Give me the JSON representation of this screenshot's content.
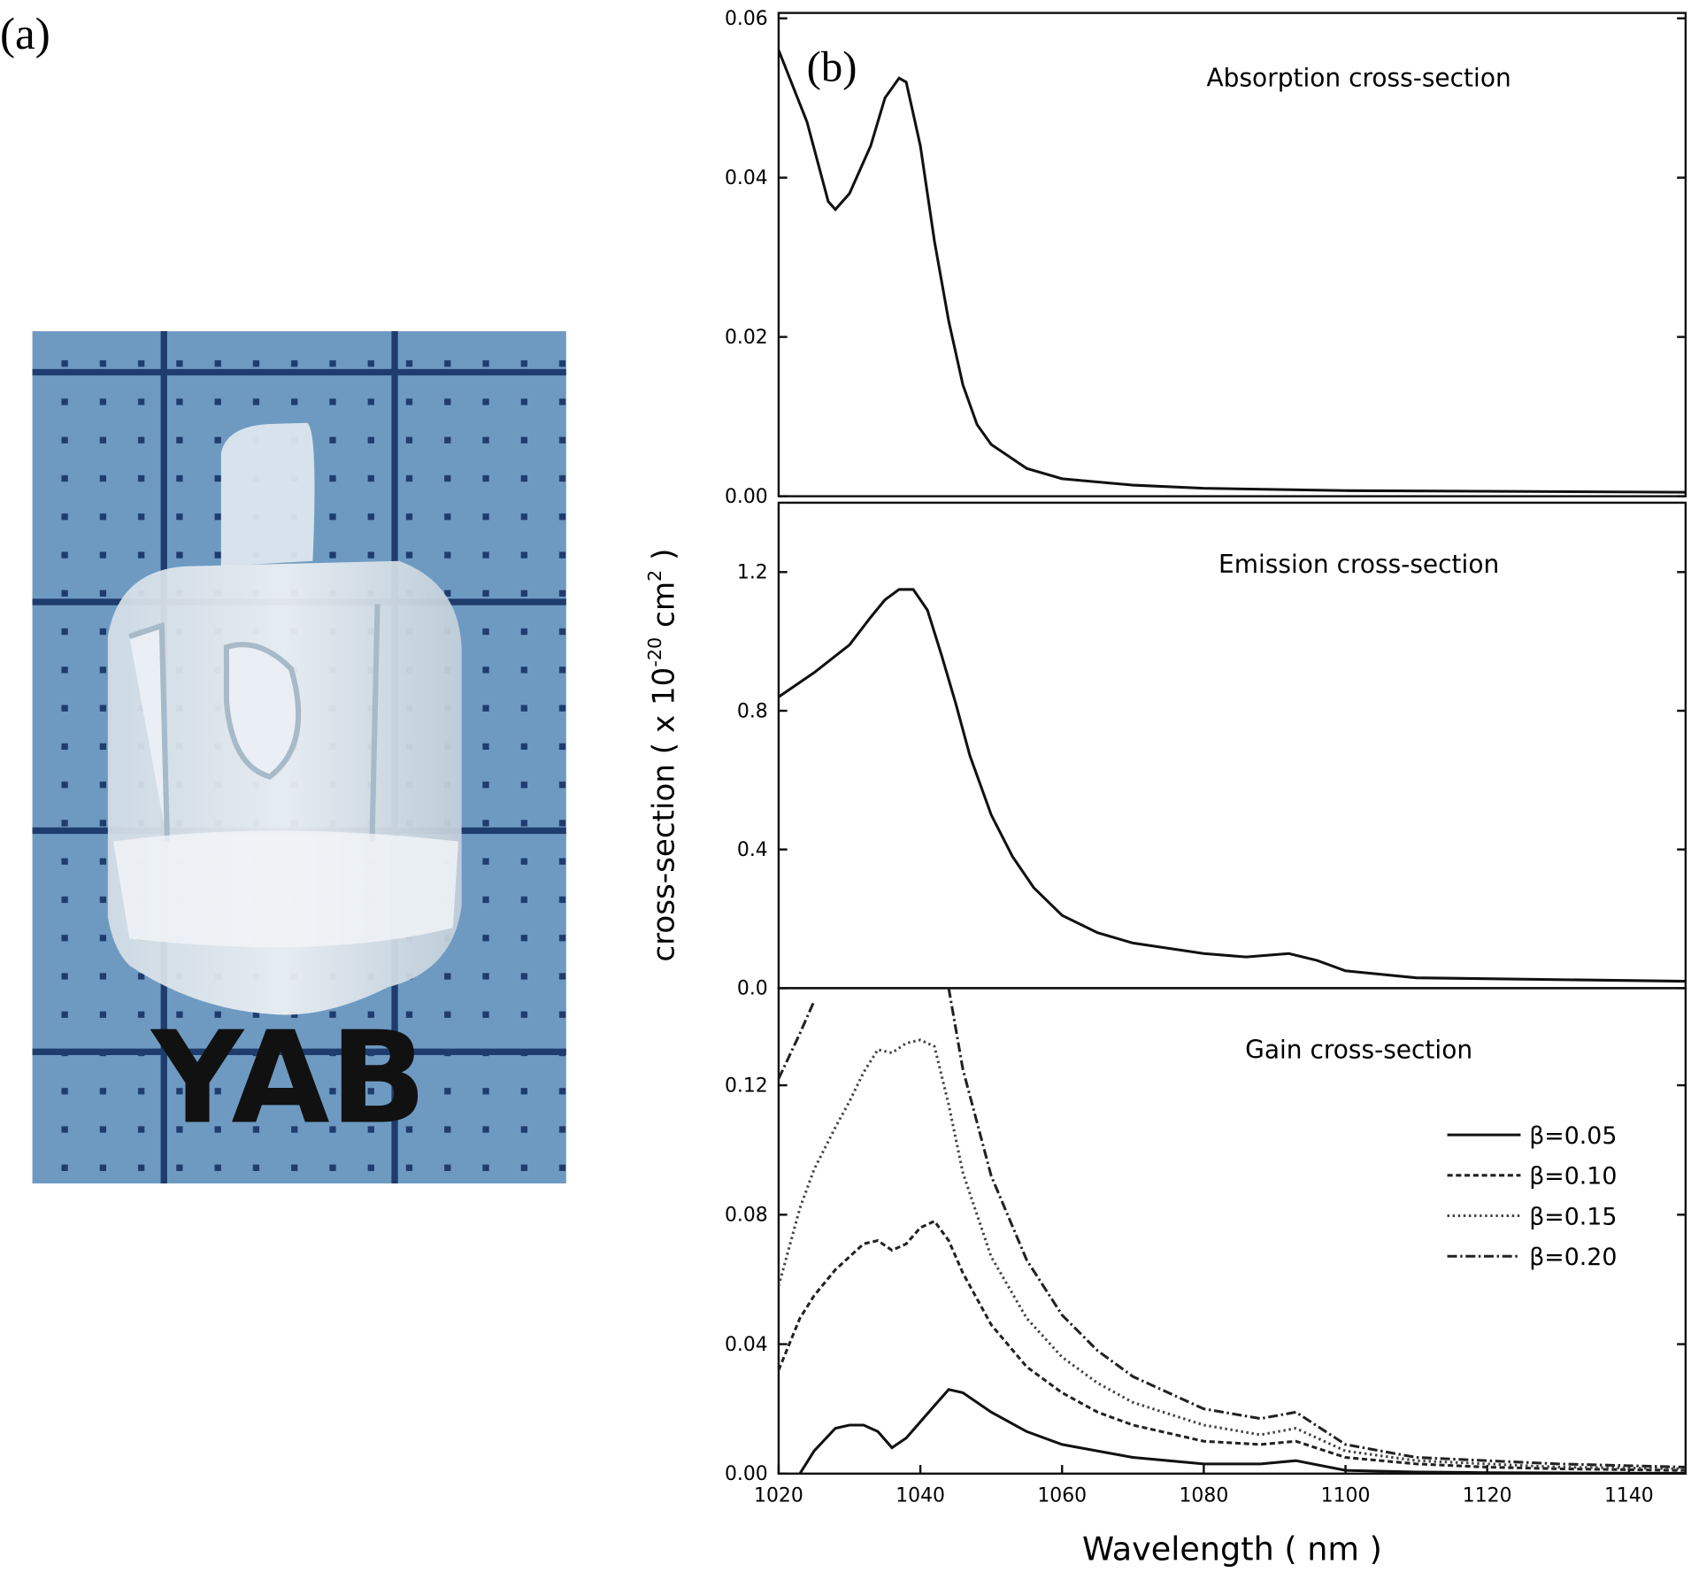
{
  "panel_a": {
    "label": "(a)",
    "photo_text": "YAB"
  },
  "panel_b_label": "(b)",
  "ylabel": [
    "cross-section  ( x 10",
    "-20",
    " cm",
    "2",
    " )"
  ],
  "chart_data": [
    {
      "type": "line",
      "title": "Absorption cross-section",
      "color": "#111111",
      "x": [
        1020,
        1024,
        1027,
        1028,
        1030,
        1033,
        1035,
        1037,
        1038,
        1040,
        1042,
        1044,
        1046,
        1048,
        1050,
        1055,
        1060,
        1070,
        1080,
        1100,
        1148
      ],
      "values": [
        0.056,
        0.047,
        0.037,
        0.036,
        0.038,
        0.044,
        0.05,
        0.0525,
        0.052,
        0.044,
        0.032,
        0.022,
        0.014,
        0.009,
        0.0065,
        0.0035,
        0.0022,
        0.0014,
        0.001,
        0.0007,
        0.0005
      ],
      "xlim": [
        1020,
        1148
      ],
      "ylim": [
        0,
        0.06
      ],
      "yticks": [
        {
          "value": 0,
          "label": "0.00"
        },
        {
          "value": 0.02,
          "label": "0.02"
        },
        {
          "value": 0.04,
          "label": "0.04"
        },
        {
          "value": 0.06,
          "label": "0.06"
        }
      ]
    },
    {
      "type": "line",
      "title": "Emission cross-section",
      "color": "#111111",
      "x": [
        1020,
        1025,
        1030,
        1033,
        1035,
        1037,
        1039,
        1041,
        1043,
        1045,
        1047,
        1050,
        1053,
        1056,
        1060,
        1065,
        1070,
        1080,
        1086,
        1092,
        1096,
        1100,
        1110,
        1148
      ],
      "values": [
        0.84,
        0.91,
        0.99,
        1.07,
        1.12,
        1.15,
        1.15,
        1.09,
        0.96,
        0.82,
        0.67,
        0.5,
        0.38,
        0.29,
        0.21,
        0.16,
        0.13,
        0.1,
        0.09,
        0.1,
        0.08,
        0.05,
        0.03,
        0.02
      ],
      "xlim": [
        1020,
        1148
      ],
      "ylim": [
        0,
        1.4
      ],
      "yticks": [
        {
          "value": 0,
          "label": "0.0"
        },
        0.4,
        0.8,
        1.2
      ]
    },
    {
      "type": "line",
      "title": "Gain cross-section",
      "xlabel": "Wavelength  ( nm )",
      "x": [
        1020,
        1023,
        1025,
        1028,
        1030,
        1032,
        1034,
        1036,
        1038,
        1040,
        1042,
        1044,
        1046,
        1050,
        1055,
        1060,
        1065,
        1070,
        1080,
        1088,
        1093,
        1100,
        1110,
        1120,
        1130,
        1148
      ],
      "series": [
        {
          "name": "β=0.05",
          "color": "#111111",
          "dash": "solid",
          "values": [
            null,
            0,
            0.007,
            0.014,
            0.015,
            0.015,
            0.013,
            0.008,
            0.011,
            0.016,
            0.021,
            0.026,
            0.025,
            0.019,
            0.013,
            0.009,
            0.007,
            0.005,
            0.003,
            0.003,
            0.004,
            0.001,
            0.0005,
            0.0003,
            0.0002,
            0.0001
          ]
        },
        {
          "name": "β=0.10",
          "color": "#222222",
          "dash": "dash",
          "values": [
            0.032,
            0.048,
            0.055,
            0.063,
            0.067,
            0.071,
            0.072,
            0.069,
            0.071,
            0.076,
            0.078,
            0.072,
            0.062,
            0.046,
            0.033,
            0.025,
            0.019,
            0.015,
            0.01,
            0.009,
            0.01,
            0.005,
            0.003,
            0.002,
            0.0015,
            0.001
          ]
        },
        {
          "name": "β=0.15",
          "color": "#444444",
          "dash": "dot",
          "values": [
            0.058,
            0.082,
            0.094,
            0.107,
            0.115,
            0.124,
            0.131,
            0.13,
            0.133,
            0.134,
            0.132,
            0.114,
            0.093,
            0.067,
            0.048,
            0.036,
            0.028,
            0.022,
            0.015,
            0.012,
            0.014,
            0.007,
            0.004,
            0.003,
            0.002,
            0.0015
          ]
        },
        {
          "name": "β=0.20",
          "color": "#222222",
          "dash": "dashdot",
          "values": [
            0.122,
            0.136,
            0.146,
            null,
            null,
            null,
            null,
            null,
            null,
            null,
            null,
            0.15,
            0.125,
            0.092,
            0.066,
            0.049,
            0.038,
            0.03,
            0.02,
            0.017,
            0.019,
            0.009,
            0.005,
            0.004,
            0.003,
            0.002
          ]
        }
      ],
      "xlim": [
        1020,
        1148
      ],
      "ylim": [
        0,
        0.15
      ],
      "xticks": [
        1020,
        1040,
        1060,
        1080,
        1100,
        1120,
        1140
      ],
      "yticks": [
        {
          "value": 0,
          "label": "0.00"
        },
        {
          "value": 0.04,
          "label": "0.04"
        },
        {
          "value": 0.08,
          "label": "0.08"
        },
        {
          "value": 0.12,
          "label": "0.12"
        }
      ]
    }
  ]
}
